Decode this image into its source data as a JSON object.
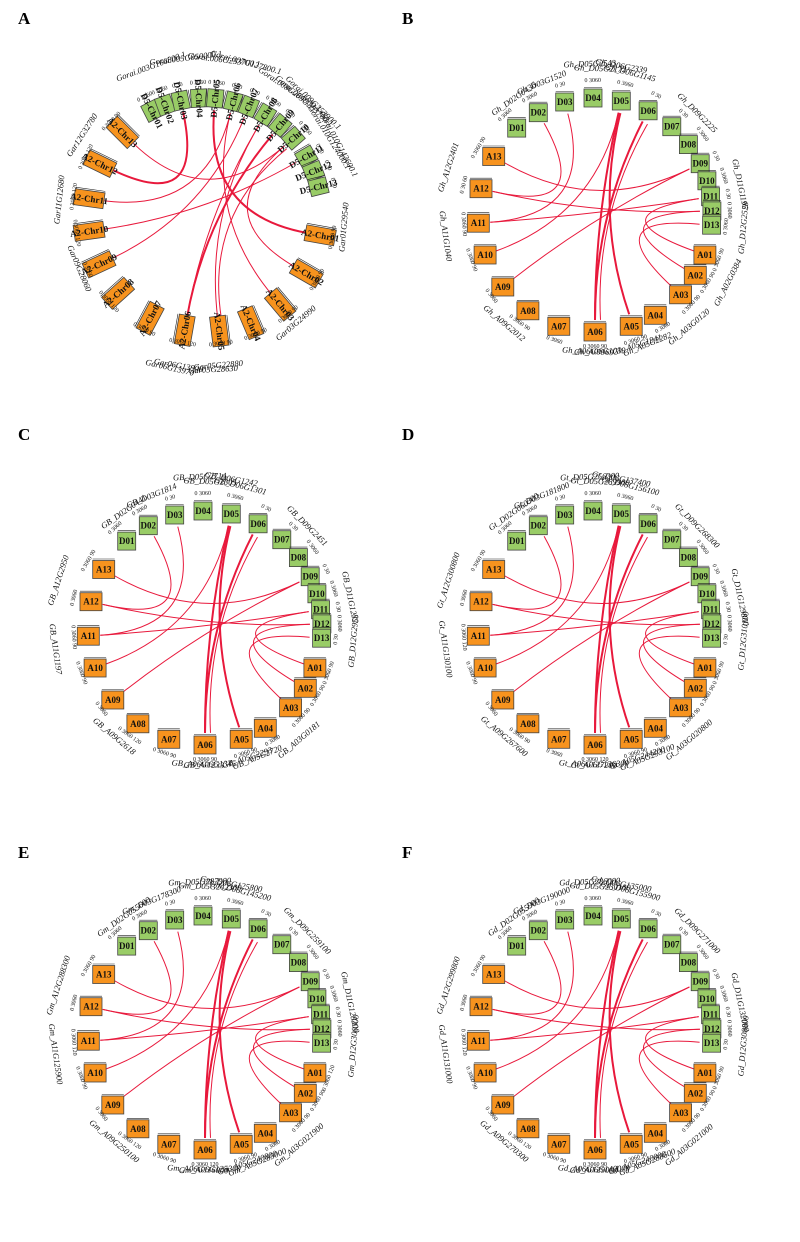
{
  "colors": {
    "A_genome": "#f7931e",
    "D_genome": "#99cc66",
    "link": "#e8193c",
    "outline": "#444444"
  },
  "panels": [
    {
      "letter": "A",
      "style": "long",
      "chromosomes": [
        {
          "id": "A2-Chr01",
          "g": "A",
          "ticks": "0 3060 90"
        },
        {
          "id": "A2-Chr02",
          "g": "A",
          "ticks": "0 3060 90"
        },
        {
          "id": "A2-Chr03",
          "g": "A",
          "ticks": "0 3060 90"
        },
        {
          "id": "A2-Chr04",
          "g": "A",
          "ticks": "0 3060 90"
        },
        {
          "id": "A2-Chr05",
          "g": "A",
          "ticks": "0 3060 90"
        },
        {
          "id": "A2-Chr06",
          "g": "A",
          "ticks": "0 3060 120"
        },
        {
          "id": "A2-Chr07",
          "g": "A",
          "ticks": "0 3060 90"
        },
        {
          "id": "A2-Chr08",
          "g": "A",
          "ticks": "0 3060 120"
        },
        {
          "id": "A2-Chr09",
          "g": "A",
          "ticks": "0 3060"
        },
        {
          "id": "A2-Chr10",
          "g": "A",
          "ticks": "0 3060 120"
        },
        {
          "id": "A2-Chr11",
          "g": "A",
          "ticks": "0 3060 120"
        },
        {
          "id": "A2-Chr12",
          "g": "A",
          "ticks": "0 3060 120"
        },
        {
          "id": "A2-Chr13",
          "g": "A",
          "ticks": "0 3060 90"
        },
        {
          "id": "D5-Chr01",
          "g": "D",
          "ticks": "0 3060"
        },
        {
          "id": "D5-Chr02",
          "g": "D",
          "ticks": "0 3060"
        },
        {
          "id": "D5-Chr03",
          "g": "D",
          "ticks": "0 30"
        },
        {
          "id": "D5-Chr04",
          "g": "D",
          "ticks": "0 3060"
        },
        {
          "id": "D5-Chr05",
          "g": "D",
          "ticks": "0 3060"
        },
        {
          "id": "D5-Chr06",
          "g": "D",
          "ticks": "0 30"
        },
        {
          "id": "D5-Chr07",
          "g": "D",
          "ticks": "0 30"
        },
        {
          "id": "D5-Chr08",
          "g": "D",
          "ticks": "0 3060"
        },
        {
          "id": "D5-Chr09",
          "g": "D",
          "ticks": "0 30"
        },
        {
          "id": "D5-Chr10",
          "g": "D",
          "ticks": "0 3060"
        },
        {
          "id": "D5-Chr11",
          "g": "D",
          "ticks": "0 30"
        },
        {
          "id": "D5-Chr12",
          "g": "D",
          "ticks": "0 30"
        },
        {
          "id": "D5-Chr13",
          "g": "D",
          "ticks": "0 30"
        }
      ],
      "genes": [
        "Gorai.003G166800.1",
        "Gorai.005G050000.1",
        "Gorai.006G253700.1",
        "Gorai.007G127800.1",
        "Gorai.008G284900.1",
        "Gorai.009G253700.1",
        "Gorai.009G253900.1",
        "Gorai.010G124000.1",
        "Gorai.010G143600.1",
        "Gar12G32780",
        "Gar11G12680",
        "Gar09G28060",
        "Gar01G29540",
        "Gar03G24990",
        "Gar05G22880",
        "Gar05G28630",
        "Gar06G13900",
        "Gar06G13970"
      ]
    },
    {
      "letter": "B",
      "style": "short",
      "chromosomes": [
        {
          "id": "A01",
          "g": "A",
          "ticks": "0 3060 90"
        },
        {
          "id": "A02",
          "g": "A",
          "ticks": "0 3060 90"
        },
        {
          "id": "A03",
          "g": "A",
          "ticks": "0 3060 90"
        },
        {
          "id": "A04",
          "g": "A",
          "ticks": "0 3060"
        },
        {
          "id": "A05",
          "g": "A",
          "ticks": "0 3060 90"
        },
        {
          "id": "A06",
          "g": "A",
          "ticks": "0 3060 90"
        },
        {
          "id": "A07",
          "g": "A",
          "ticks": "0 3060"
        },
        {
          "id": "A08",
          "g": "A",
          "ticks": "0 3060 90"
        },
        {
          "id": "A09",
          "g": "A",
          "ticks": "0 3060"
        },
        {
          "id": "A10",
          "g": "A",
          "ticks": "0 3060 90"
        },
        {
          "id": "A11",
          "g": "A",
          "ticks": "0 3060 90"
        },
        {
          "id": "A12",
          "g": "A",
          "ticks": "0 30 60"
        },
        {
          "id": "A13",
          "g": "A",
          "ticks": "0 3060 90"
        },
        {
          "id": "D01",
          "g": "D",
          "ticks": "0 3060"
        },
        {
          "id": "D02",
          "g": "D",
          "ticks": "0 3060"
        },
        {
          "id": "D03",
          "g": "D",
          "ticks": "0 30"
        },
        {
          "id": "D04",
          "g": "D",
          "ticks": "0 3060"
        },
        {
          "id": "D05",
          "g": "D",
          "ticks": "0 3060"
        },
        {
          "id": "D06",
          "g": "D",
          "ticks": "0 30"
        },
        {
          "id": "D07",
          "g": "D",
          "ticks": "0 30"
        },
        {
          "id": "D08",
          "g": "D",
          "ticks": "0 3060"
        },
        {
          "id": "D09",
          "g": "D",
          "ticks": "0 30"
        },
        {
          "id": "D10",
          "g": "D",
          "ticks": "0 3060"
        },
        {
          "id": "D11",
          "g": "D",
          "ticks": "0 30"
        },
        {
          "id": "D12",
          "g": "D",
          "ticks": "0 3060"
        },
        {
          "id": "D13",
          "g": "D",
          "ticks": "0 3060"
        }
      ],
      "genes": [
        "Gh_D02G0436",
        "Gh_D03G1520",
        "Gh_D05G2543",
        "Gh_D05G2172",
        "Gh_D06G2339",
        "Gh_D06G1145",
        "Gh_D09G2225",
        "Gh_D11G1195",
        "Gh_D12G2528",
        "Gh_A12G2401",
        "Gh_A11G1040",
        "Gh_A09G2012",
        "Gh_A06G0969",
        "Gh_A06G1059",
        "Gh_A05G1941",
        "Gh_A05G2282",
        "Gh_A03G0120",
        "Gh_A02G0384"
      ]
    },
    {
      "letter": "C",
      "style": "short",
      "chromosomes": [
        {
          "id": "A01",
          "g": "A",
          "ticks": "0 3060 90"
        },
        {
          "id": "A02",
          "g": "A",
          "ticks": "0 3060 90"
        },
        {
          "id": "A03",
          "g": "A",
          "ticks": "0 3060 90"
        },
        {
          "id": "A04",
          "g": "A",
          "ticks": "0 3060"
        },
        {
          "id": "A05",
          "g": "A",
          "ticks": "0 3060 90"
        },
        {
          "id": "A06",
          "g": "A",
          "ticks": "0 3060 90"
        },
        {
          "id": "A07",
          "g": "A",
          "ticks": "0 3060 90"
        },
        {
          "id": "A08",
          "g": "A",
          "ticks": "0 3060 120"
        },
        {
          "id": "A09",
          "g": "A",
          "ticks": "0 3060"
        },
        {
          "id": "A10",
          "g": "A",
          "ticks": "0 3060 90"
        },
        {
          "id": "A11",
          "g": "A",
          "ticks": "0 3060 90"
        },
        {
          "id": "A12",
          "g": "A",
          "ticks": "0 3060"
        },
        {
          "id": "A13",
          "g": "A",
          "ticks": "0 3060 90"
        },
        {
          "id": "D01",
          "g": "D",
          "ticks": "0 3060"
        },
        {
          "id": "D02",
          "g": "D",
          "ticks": "0 3060"
        },
        {
          "id": "D03",
          "g": "D",
          "ticks": "0 30"
        },
        {
          "id": "D04",
          "g": "D",
          "ticks": "0 3060"
        },
        {
          "id": "D05",
          "g": "D",
          "ticks": "0 3060"
        },
        {
          "id": "D06",
          "g": "D",
          "ticks": "0 30"
        },
        {
          "id": "D07",
          "g": "D",
          "ticks": "0 30"
        },
        {
          "id": "D08",
          "g": "D",
          "ticks": "0 3060"
        },
        {
          "id": "D09",
          "g": "D",
          "ticks": "0 30"
        },
        {
          "id": "D10",
          "g": "D",
          "ticks": "0 3060"
        },
        {
          "id": "D11",
          "g": "D",
          "ticks": "0 30"
        },
        {
          "id": "D12",
          "g": "D",
          "ticks": "0 3060"
        },
        {
          "id": "D13",
          "g": "D",
          "ticks": "0 30"
        }
      ],
      "genes": [
        "GB_D02G0441",
        "GB_D03G1814",
        "GB_D05G2714",
        "GB_D05G2305",
        "GB_D06G1242",
        "GB_D06G1301",
        "GB_D09G2451",
        "GB_D11G1232",
        "GB_D12G2958",
        "GB_A12G2950",
        "GB_A11G1197",
        "GB_A09G2618",
        "GB_A06G1233",
        "GB_A06G1345",
        "GB_A05G2293",
        "GB_A05G2720",
        "GB_A03G0181"
      ]
    },
    {
      "letter": "D",
      "style": "short",
      "chromosomes": [
        {
          "id": "A01",
          "g": "A",
          "ticks": "0 3060 90"
        },
        {
          "id": "A02",
          "g": "A",
          "ticks": "0 3060 90"
        },
        {
          "id": "A03",
          "g": "A",
          "ticks": "0 3060 90"
        },
        {
          "id": "A04",
          "g": "A",
          "ticks": "0 3060"
        },
        {
          "id": "A05",
          "g": "A",
          "ticks": "0 3060 90"
        },
        {
          "id": "A06",
          "g": "A",
          "ticks": "0 3060 120"
        },
        {
          "id": "A07",
          "g": "A",
          "ticks": "0 3060"
        },
        {
          "id": "A08",
          "g": "A",
          "ticks": "0 3060 90"
        },
        {
          "id": "A09",
          "g": "A",
          "ticks": "0 3060"
        },
        {
          "id": "A10",
          "g": "A",
          "ticks": "0 3060 90"
        },
        {
          "id": "A11",
          "g": "A",
          "ticks": "0 3060 120"
        },
        {
          "id": "A12",
          "g": "A",
          "ticks": "0 3060"
        },
        {
          "id": "A13",
          "g": "A",
          "ticks": "0 3060 90"
        },
        {
          "id": "D01",
          "g": "D",
          "ticks": "0 3060"
        },
        {
          "id": "D02",
          "g": "D",
          "ticks": "0 3060"
        },
        {
          "id": "D03",
          "g": "D",
          "ticks": "0 30"
        },
        {
          "id": "D04",
          "g": "D",
          "ticks": "0 3060"
        },
        {
          "id": "D05",
          "g": "D",
          "ticks": "0 3060"
        },
        {
          "id": "D06",
          "g": "D",
          "ticks": "0 30"
        },
        {
          "id": "D07",
          "g": "D",
          "ticks": "0 30"
        },
        {
          "id": "D08",
          "g": "D",
          "ticks": "0 3060"
        },
        {
          "id": "D09",
          "g": "D",
          "ticks": "0 30"
        },
        {
          "id": "D10",
          "g": "D",
          "ticks": "0 3060"
        },
        {
          "id": "D11",
          "g": "D",
          "ticks": "0 30"
        },
        {
          "id": "D12",
          "g": "D",
          "ticks": "0 3060"
        },
        {
          "id": "D13",
          "g": "D",
          "ticks": "0 30"
        }
      ],
      "genes": [
        "Gt_D02G060300",
        "Gt_D03G181800",
        "Gt_D05G256300",
        "Gt_D05G289900",
        "Gt_D06G137400",
        "Gt_D06G156100",
        "Gt_D09G268300",
        "Gt_D11G129800",
        "Gt_D12G310100",
        "Gt_A12G300800",
        "Gt_A11G130100",
        "Gt_A09G267600",
        "Gt_A06G127200",
        "Gt_A06G136300",
        "Gt_A05G244200",
        "Gt_A05G293100",
        "Gt_A03G020800"
      ]
    },
    {
      "letter": "E",
      "style": "short",
      "chromosomes": [
        {
          "id": "A01",
          "g": "A",
          "ticks": "0 3060 120"
        },
        {
          "id": "A02",
          "g": "A",
          "ticks": "0 3060 90"
        },
        {
          "id": "A03",
          "g": "A",
          "ticks": "0 3060 90"
        },
        {
          "id": "A04",
          "g": "A",
          "ticks": "0 3060"
        },
        {
          "id": "A05",
          "g": "A",
          "ticks": "0 3060 90"
        },
        {
          "id": "A06",
          "g": "A",
          "ticks": "0 3060 120"
        },
        {
          "id": "A07",
          "g": "A",
          "ticks": "0 3060 90"
        },
        {
          "id": "A08",
          "g": "A",
          "ticks": "0 3060 120"
        },
        {
          "id": "A09",
          "g": "A",
          "ticks": "0 3060"
        },
        {
          "id": "A10",
          "g": "A",
          "ticks": "0 3060 90"
        },
        {
          "id": "A11",
          "g": "A",
          "ticks": "0 3060 120"
        },
        {
          "id": "A12",
          "g": "A",
          "ticks": "0 3060"
        },
        {
          "id": "A13",
          "g": "A",
          "ticks": "0 3060 90"
        },
        {
          "id": "D01",
          "g": "D",
          "ticks": "0 3060"
        },
        {
          "id": "D02",
          "g": "D",
          "ticks": "0 3060"
        },
        {
          "id": "D03",
          "g": "D",
          "ticks": "0 30"
        },
        {
          "id": "D04",
          "g": "D",
          "ticks": "0 3060"
        },
        {
          "id": "D05",
          "g": "D",
          "ticks": "0 3060"
        },
        {
          "id": "D06",
          "g": "D",
          "ticks": "0 30"
        },
        {
          "id": "D07",
          "g": "D",
          "ticks": "0 30"
        },
        {
          "id": "D08",
          "g": "D",
          "ticks": "0 3060"
        },
        {
          "id": "D09",
          "g": "D",
          "ticks": "0 30"
        },
        {
          "id": "D10",
          "g": "D",
          "ticks": "0 3060"
        },
        {
          "id": "D11",
          "g": "D",
          "ticks": "0 30"
        },
        {
          "id": "D12",
          "g": "D",
          "ticks": "0 3060"
        },
        {
          "id": "D13",
          "g": "D",
          "ticks": "0 30"
        }
      ],
      "genes": [
        "Gm_D02G055600",
        "Gm_D03G178300",
        "Gm_D05G287900",
        "Gm_D05G242300",
        "Gm_D06G125800",
        "Gm_D06G145200",
        "Gm_D09G259100",
        "Gm_D11G128200",
        "Gm_D12G300300",
        "Gm_A12G288300",
        "Gm_A11G125900",
        "Gm_A09G250100",
        "Gm_A06G116000",
        "Gm_A06G125300",
        "Gm_A05G240800",
        "Gm_A05G285000",
        "Gm_A03G021900"
      ]
    },
    {
      "letter": "F",
      "style": "short",
      "chromosomes": [
        {
          "id": "A01",
          "g": "A",
          "ticks": "0 3060 90"
        },
        {
          "id": "A02",
          "g": "A",
          "ticks": "0 3060 90"
        },
        {
          "id": "A03",
          "g": "A",
          "ticks": "0 3060 90"
        },
        {
          "id": "A04",
          "g": "A",
          "ticks": "0 3060"
        },
        {
          "id": "A05",
          "g": "A",
          "ticks": "0 3060 90"
        },
        {
          "id": "A06",
          "g": "A",
          "ticks": "0 3060 90"
        },
        {
          "id": "A07",
          "g": "A",
          "ticks": "0 3060 90"
        },
        {
          "id": "A08",
          "g": "A",
          "ticks": "0 3060 120"
        },
        {
          "id": "A09",
          "g": "A",
          "ticks": "0 3060"
        },
        {
          "id": "A10",
          "g": "A",
          "ticks": "0 3060 90"
        },
        {
          "id": "A11",
          "g": "A",
          "ticks": "0 3060 120"
        },
        {
          "id": "A12",
          "g": "A",
          "ticks": "0 3060"
        },
        {
          "id": "A13",
          "g": "A",
          "ticks": "0 3060 90"
        },
        {
          "id": "D01",
          "g": "D",
          "ticks": "0 3060"
        },
        {
          "id": "D02",
          "g": "D",
          "ticks": "0 3060"
        },
        {
          "id": "D03",
          "g": "D",
          "ticks": "0 30"
        },
        {
          "id": "D04",
          "g": "D",
          "ticks": "0 3060"
        },
        {
          "id": "D05",
          "g": "D",
          "ticks": "0 3060"
        },
        {
          "id": "D06",
          "g": "D",
          "ticks": "0 30"
        },
        {
          "id": "D07",
          "g": "D",
          "ticks": "0 30"
        },
        {
          "id": "D08",
          "g": "D",
          "ticks": "0 3060"
        },
        {
          "id": "D09",
          "g": "D",
          "ticks": "0 30"
        },
        {
          "id": "D10",
          "g": "D",
          "ticks": "0 3060"
        },
        {
          "id": "D11",
          "g": "D",
          "ticks": "0 30"
        },
        {
          "id": "D12",
          "g": "D",
          "ticks": "0 3060"
        },
        {
          "id": "D13",
          "g": "D",
          "ticks": "0 30"
        }
      ],
      "genes": [
        "Gd_D02G055900",
        "Gd_D03G190000",
        "Gd_D05G286000",
        "Gd_D05G230100",
        "Gd_D06G135000",
        "Gd_D06G155900",
        "Gd_D09G271000",
        "Gd_D11G132000",
        "Gd_D12G308800",
        "Gd_A12G299800",
        "Gd_A11G131000",
        "Gd_A09G270300",
        "Gd_A06G129000",
        "Gd_A06G140000",
        "Gd_A05G240000",
        "Gd_A05G288600",
        "Gd_A03G021000"
      ]
    }
  ]
}
